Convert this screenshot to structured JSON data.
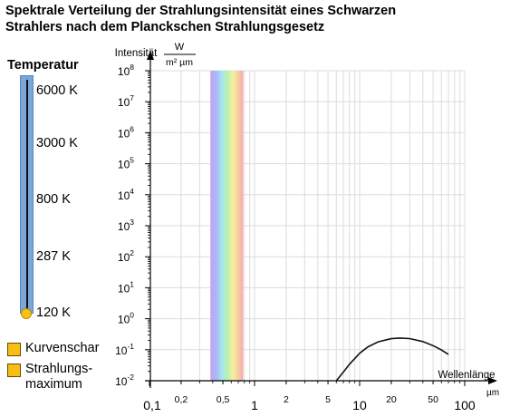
{
  "title_line1": "Spektrale Verteilung der Strahlungsintensität eines Schwarzen",
  "title_line2": "Strahlers nach dem Planckschen Strahlungsgesetz",
  "temperature": {
    "heading": "Temperatur",
    "labels": [
      "6000 K",
      "3000 K",
      "800 K",
      "287 K",
      "120 K"
    ],
    "selected": "120 K",
    "slider_color": "#7aa6dc",
    "knob_color": "#f5c21a"
  },
  "options": [
    {
      "label": "Kurvenschar",
      "checked": false
    },
    {
      "label_line1": "Strahlungs-",
      "label_line2": "maximum",
      "checked": false
    }
  ],
  "chart_data": {
    "type": "line",
    "x_scale": "log",
    "y_scale": "log",
    "xlim": [
      0.1,
      100
    ],
    "ylim": [
      0.01,
      100000000
    ],
    "y_axis_label": "Intensität",
    "y_unit_num": "W",
    "y_unit_den": "m² µm",
    "x_axis_label": "Wellenlänge",
    "x_unit": "µm",
    "x_ticks": [
      {
        "v": 0.1,
        "t": "0,1",
        "major": true
      },
      {
        "v": 0.2,
        "t": "0,2",
        "major": false
      },
      {
        "v": 0.5,
        "t": "0,5",
        "major": false
      },
      {
        "v": 1,
        "t": "1",
        "major": true
      },
      {
        "v": 2,
        "t": "2",
        "major": false
      },
      {
        "v": 5,
        "t": "5",
        "major": false
      },
      {
        "v": 10,
        "t": "10",
        "major": true
      },
      {
        "v": 20,
        "t": "20",
        "major": false
      },
      {
        "v": 50,
        "t": "50",
        "major": false
      },
      {
        "v": 100,
        "t": "100",
        "major": true
      }
    ],
    "y_ticks": [
      {
        "b": "10",
        "e": "8"
      },
      {
        "b": "10",
        "e": "7"
      },
      {
        "b": "10",
        "e": "6"
      },
      {
        "b": "10",
        "e": "5"
      },
      {
        "b": "10",
        "e": "4"
      },
      {
        "b": "10",
        "e": "3"
      },
      {
        "b": "10",
        "e": "2"
      },
      {
        "b": "10",
        "e": "1"
      },
      {
        "b": "10",
        "e": "0"
      },
      {
        "b": "10",
        "e": "-1"
      },
      {
        "b": "10",
        "e": "-2"
      }
    ],
    "visible_band_um": [
      0.38,
      0.78
    ],
    "series": [
      {
        "temperature_K": 120,
        "x": [
          6,
          7,
          8,
          10,
          12,
          15,
          20,
          24,
          30,
          40,
          50,
          60,
          70
        ],
        "y": [
          0.01,
          0.019,
          0.034,
          0.077,
          0.124,
          0.18,
          0.227,
          0.239,
          0.229,
          0.183,
          0.135,
          0.098,
          0.071
        ]
      }
    ]
  }
}
